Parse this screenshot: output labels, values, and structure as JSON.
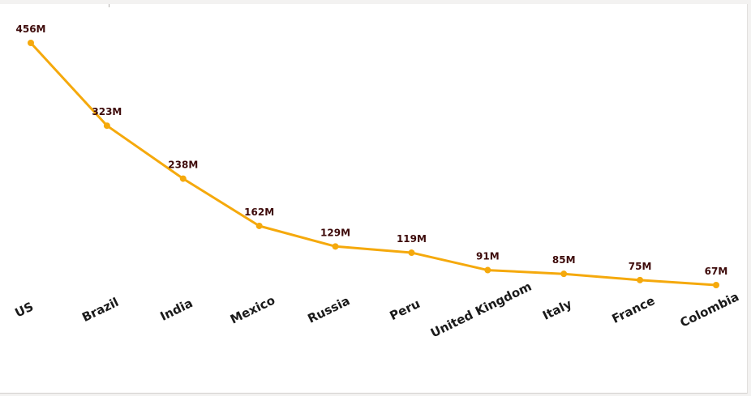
{
  "chart_data": {
    "type": "line",
    "categories": [
      "US",
      "Brazil",
      "India",
      "Mexico",
      "Russia",
      "Peru",
      "United Kingdom",
      "Italy",
      "France",
      "Colombia"
    ],
    "values": [
      456,
      323,
      238,
      162,
      129,
      119,
      91,
      85,
      75,
      67
    ],
    "data_labels": [
      "456M",
      "323M",
      "238M",
      "162M",
      "129M",
      "119M",
      "91M",
      "85M",
      "75M",
      "67M"
    ],
    "title": "",
    "xlabel": "",
    "ylabel": "",
    "ylim": [
      0,
      456
    ],
    "grid": false,
    "legend": "none",
    "line_color": "#f5a90c",
    "label_color": "#3d0a0a"
  }
}
